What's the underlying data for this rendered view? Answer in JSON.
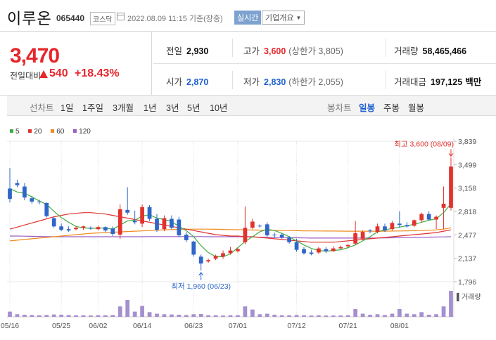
{
  "header": {
    "stock_name": "이루온",
    "stock_code": "065440",
    "market": "코스닥",
    "date_time": "2022.08.09 11:15",
    "basis": "기준(장중)",
    "realtime_label": "실시간",
    "company_overview_label": "기업개요"
  },
  "price": {
    "current": "3,470",
    "change_label": "전일대비",
    "change_value": "540",
    "change_percent": "+18.43%",
    "direction": "up"
  },
  "stats": {
    "prev_close_label": "전일",
    "prev_close": "2,930",
    "high_label": "고가",
    "high": "3,600",
    "upper_limit": "(상한가 3,805)",
    "volume_label": "거래량",
    "volume": "58,465,466",
    "open_label": "시가",
    "open": "2,870",
    "low_label": "저가",
    "low": "2,830",
    "lower_limit": "(하한가 2,055)",
    "trade_amount_label": "거래대금",
    "trade_amount": "197,125",
    "trade_amount_unit": "백만"
  },
  "period_bar": {
    "line_chart_label": "선차트",
    "line_periods": [
      "1일",
      "1주일",
      "3개월",
      "1년",
      "3년",
      "5년",
      "10년"
    ],
    "candle_chart_label": "봉차트",
    "candle_periods": [
      "일봉",
      "주봉",
      "월봉"
    ],
    "active_candle_period": "일봉"
  },
  "colors": {
    "up": "#e0332f",
    "down": "#2f66c9",
    "ma5": "#3fae3f",
    "ma20": "#e0332f",
    "ma60": "#f08a1c",
    "ma120": "#9b5fc0",
    "volume": "#a58fcf"
  },
  "chart_data": {
    "type": "candlestick",
    "legend": [
      {
        "name": "5",
        "color": "#3fae3f"
      },
      {
        "name": "20",
        "color": "#e0332f"
      },
      {
        "name": "60",
        "color": "#f08a1c"
      },
      {
        "name": "120",
        "color": "#9b5fc0"
      }
    ],
    "y_ticks": [
      3839,
      3499,
      3158,
      2818,
      2477,
      2137,
      1796
    ],
    "ylim": [
      1796,
      3839
    ],
    "x_tick_labels": [
      "05/16",
      "05/25",
      "06/02",
      "06/14",
      "06/23",
      "07/01",
      "07/12",
      "07/21",
      "08/01"
    ],
    "x_tick_index": [
      0,
      7,
      12,
      18,
      25,
      31,
      39,
      46,
      53
    ],
    "max_annotation": "최고 3,600 (08/09)",
    "min_annotation": "최저 1,960 (06/23)",
    "volume_label": "거래량",
    "candles": [
      {
        "o": 3150,
        "h": 3450,
        "l": 2950,
        "c": 3000
      },
      {
        "o": 3230,
        "h": 3280,
        "l": 3170,
        "c": 3200
      },
      {
        "o": 3180,
        "h": 3230,
        "l": 2980,
        "c": 3020
      },
      {
        "o": 3010,
        "h": 3040,
        "l": 2930,
        "c": 2960
      },
      {
        "o": 2960,
        "h": 2990,
        "l": 2920,
        "c": 2950
      },
      {
        "o": 2940,
        "h": 2950,
        "l": 2730,
        "c": 2750
      },
      {
        "o": 2720,
        "h": 2740,
        "l": 2580,
        "c": 2600
      },
      {
        "o": 2600,
        "h": 2640,
        "l": 2530,
        "c": 2550
      },
      {
        "o": 2560,
        "h": 2600,
        "l": 2520,
        "c": 2540
      },
      {
        "o": 2560,
        "h": 2600,
        "l": 2540,
        "c": 2580
      },
      {
        "o": 2580,
        "h": 2610,
        "l": 2550,
        "c": 2600
      },
      {
        "o": 2580,
        "h": 2600,
        "l": 2550,
        "c": 2570
      },
      {
        "o": 2560,
        "h": 2610,
        "l": 2540,
        "c": 2590
      },
      {
        "o": 2590,
        "h": 2600,
        "l": 2520,
        "c": 2540
      },
      {
        "o": 2570,
        "h": 2600,
        "l": 2460,
        "c": 2490
      },
      {
        "o": 2480,
        "h": 2920,
        "l": 2420,
        "c": 2850
      },
      {
        "o": 2840,
        "h": 3170,
        "l": 2770,
        "c": 2800
      },
      {
        "o": 2680,
        "h": 2830,
        "l": 2630,
        "c": 2660
      },
      {
        "o": 2640,
        "h": 2920,
        "l": 2590,
        "c": 2880
      },
      {
        "o": 2880,
        "h": 2910,
        "l": 2680,
        "c": 2710
      },
      {
        "o": 2710,
        "h": 2780,
        "l": 2520,
        "c": 2550
      },
      {
        "o": 2560,
        "h": 2760,
        "l": 2530,
        "c": 2720
      },
      {
        "o": 2710,
        "h": 2760,
        "l": 2560,
        "c": 2580
      },
      {
        "o": 2700,
        "h": 2740,
        "l": 2440,
        "c": 2470
      },
      {
        "o": 2480,
        "h": 2520,
        "l": 2370,
        "c": 2400
      },
      {
        "o": 2380,
        "h": 2390,
        "l": 2160,
        "c": 2190
      },
      {
        "o": 2160,
        "h": 2190,
        "l": 1960,
        "c": 2060
      },
      {
        "o": 2090,
        "h": 2130,
        "l": 2070,
        "c": 2110
      },
      {
        "o": 2130,
        "h": 2190,
        "l": 2110,
        "c": 2170
      },
      {
        "o": 2160,
        "h": 2250,
        "l": 2130,
        "c": 2210
      },
      {
        "o": 2210,
        "h": 2300,
        "l": 2190,
        "c": 2250
      },
      {
        "o": 2240,
        "h": 2290,
        "l": 2220,
        "c": 2270
      },
      {
        "o": 2370,
        "h": 2890,
        "l": 2340,
        "c": 2580
      },
      {
        "o": 2580,
        "h": 2710,
        "l": 2560,
        "c": 2670
      },
      {
        "o": 2610,
        "h": 2630,
        "l": 2580,
        "c": 2600
      },
      {
        "o": 2630,
        "h": 2660,
        "l": 2450,
        "c": 2470
      },
      {
        "o": 2480,
        "h": 2510,
        "l": 2430,
        "c": 2470
      },
      {
        "o": 2480,
        "h": 2500,
        "l": 2420,
        "c": 2440
      },
      {
        "o": 2440,
        "h": 2460,
        "l": 2350,
        "c": 2370
      },
      {
        "o": 2370,
        "h": 2420,
        "l": 2230,
        "c": 2260
      },
      {
        "o": 2270,
        "h": 2300,
        "l": 2190,
        "c": 2210
      },
      {
        "o": 2220,
        "h": 2260,
        "l": 2180,
        "c": 2200
      },
      {
        "o": 2220,
        "h": 2300,
        "l": 2200,
        "c": 2280
      },
      {
        "o": 2270,
        "h": 2300,
        "l": 2210,
        "c": 2240
      },
      {
        "o": 2240,
        "h": 2310,
        "l": 2230,
        "c": 2280
      },
      {
        "o": 2280,
        "h": 2320,
        "l": 2270,
        "c": 2300
      },
      {
        "o": 2310,
        "h": 2340,
        "l": 2280,
        "c": 2330
      },
      {
        "o": 2350,
        "h": 2680,
        "l": 2330,
        "c": 2500
      },
      {
        "o": 2420,
        "h": 2540,
        "l": 2400,
        "c": 2520
      },
      {
        "o": 2540,
        "h": 2560,
        "l": 2500,
        "c": 2530
      },
      {
        "o": 2520,
        "h": 2640,
        "l": 2500,
        "c": 2600
      },
      {
        "o": 2600,
        "h": 2640,
        "l": 2520,
        "c": 2540
      },
      {
        "o": 2560,
        "h": 2680,
        "l": 2540,
        "c": 2650
      },
      {
        "o": 2640,
        "h": 2820,
        "l": 2580,
        "c": 2620
      },
      {
        "o": 2620,
        "h": 2660,
        "l": 2580,
        "c": 2600
      },
      {
        "o": 2610,
        "h": 2700,
        "l": 2590,
        "c": 2690
      },
      {
        "o": 2690,
        "h": 2800,
        "l": 2660,
        "c": 2780
      },
      {
        "o": 2780,
        "h": 2820,
        "l": 2680,
        "c": 2700
      },
      {
        "o": 2700,
        "h": 2760,
        "l": 2560,
        "c": 2740
      },
      {
        "o": 2870,
        "h": 3180,
        "l": 2560,
        "c": 2930
      },
      {
        "o": 2870,
        "h": 3600,
        "l": 2830,
        "c": 3470
      }
    ],
    "volumes": [
      0.2,
      0.1,
      0.08,
      0.07,
      0.06,
      0.07,
      0.09,
      0.08,
      0.07,
      0.06,
      0.06,
      0.05,
      0.06,
      0.06,
      0.07,
      0.4,
      0.65,
      0.2,
      0.42,
      0.18,
      0.12,
      0.1,
      0.09,
      0.08,
      0.07,
      0.1,
      0.11,
      0.06,
      0.06,
      0.05,
      0.06,
      0.06,
      0.4,
      0.28,
      0.1,
      0.12,
      0.08,
      0.06,
      0.06,
      0.07,
      0.06,
      0.05,
      0.06,
      0.05,
      0.05,
      0.05,
      0.06,
      0.3,
      0.12,
      0.08,
      0.1,
      0.07,
      0.12,
      0.3,
      0.12,
      0.1,
      0.18,
      0.08,
      0.1,
      0.4,
      1.0
    ],
    "ma5": [
      3150,
      3100,
      3080,
      3030,
      2970,
      2920,
      2820,
      2730,
      2660,
      2600,
      2580,
      2570,
      2575,
      2575,
      2560,
      2620,
      2680,
      2690,
      2750,
      2770,
      2720,
      2700,
      2670,
      2600,
      2540,
      2450,
      2320,
      2220,
      2160,
      2160,
      2200,
      2290,
      2380,
      2450,
      2520,
      2560,
      2540,
      2500,
      2450,
      2390,
      2330,
      2280,
      2250,
      2240,
      2250,
      2260,
      2290,
      2330,
      2390,
      2450,
      2520,
      2550,
      2570,
      2590,
      2610,
      2630,
      2660,
      2690,
      2710,
      2800,
      2930
    ],
    "ma20": [
      2560,
      2590,
      2620,
      2650,
      2680,
      2710,
      2740,
      2760,
      2780,
      2790,
      2800,
      2800,
      2790,
      2780,
      2760,
      2740,
      2720,
      2700,
      2680,
      2660,
      2640,
      2620,
      2600,
      2580,
      2560,
      2540,
      2520,
      2500,
      2480,
      2470,
      2460,
      2460,
      2450,
      2450,
      2440,
      2430,
      2420,
      2410,
      2400,
      2390,
      2380,
      2370,
      2370,
      2370,
      2370,
      2380,
      2390,
      2400,
      2410,
      2420,
      2430,
      2440,
      2450,
      2460,
      2470,
      2480,
      2490,
      2500,
      2510,
      2530,
      2550
    ],
    "ma60": [
      2390,
      2400,
      2410,
      2420,
      2430,
      2440,
      2450,
      2460,
      2470,
      2480,
      2490,
      2500,
      2505,
      2510,
      2515,
      2520,
      2525,
      2530,
      2535,
      2540,
      2545,
      2550,
      2553,
      2556,
      2558,
      2560,
      2560,
      2560,
      2558,
      2556,
      2554,
      2552,
      2550,
      2548,
      2546,
      2544,
      2542,
      2540,
      2540,
      2538,
      2536,
      2535,
      2534,
      2533,
      2532,
      2531,
      2530,
      2530,
      2530,
      2530,
      2530,
      2530,
      2532,
      2534,
      2536,
      2538,
      2540,
      2545,
      2550,
      2560,
      2580
    ],
    "ma120": [
      2460,
      2460,
      2458,
      2456,
      2454,
      2452,
      2450,
      2450,
      2450,
      2450,
      2450,
      2450,
      2450,
      2450,
      2450,
      2450,
      2450,
      2450,
      2450,
      2452,
      2452,
      2452,
      2452,
      2452,
      2452,
      2452,
      2452,
      2450,
      2450,
      2450,
      2450,
      2450,
      2448,
      2446,
      2444,
      2442,
      2440,
      2438,
      2436,
      2434,
      2432,
      2430,
      2430,
      2430,
      2430,
      2430,
      2430,
      2430,
      2430,
      2430,
      2430,
      2432,
      2434,
      2436,
      2438,
      2440,
      2442,
      2444,
      2446,
      2448,
      2450
    ]
  }
}
